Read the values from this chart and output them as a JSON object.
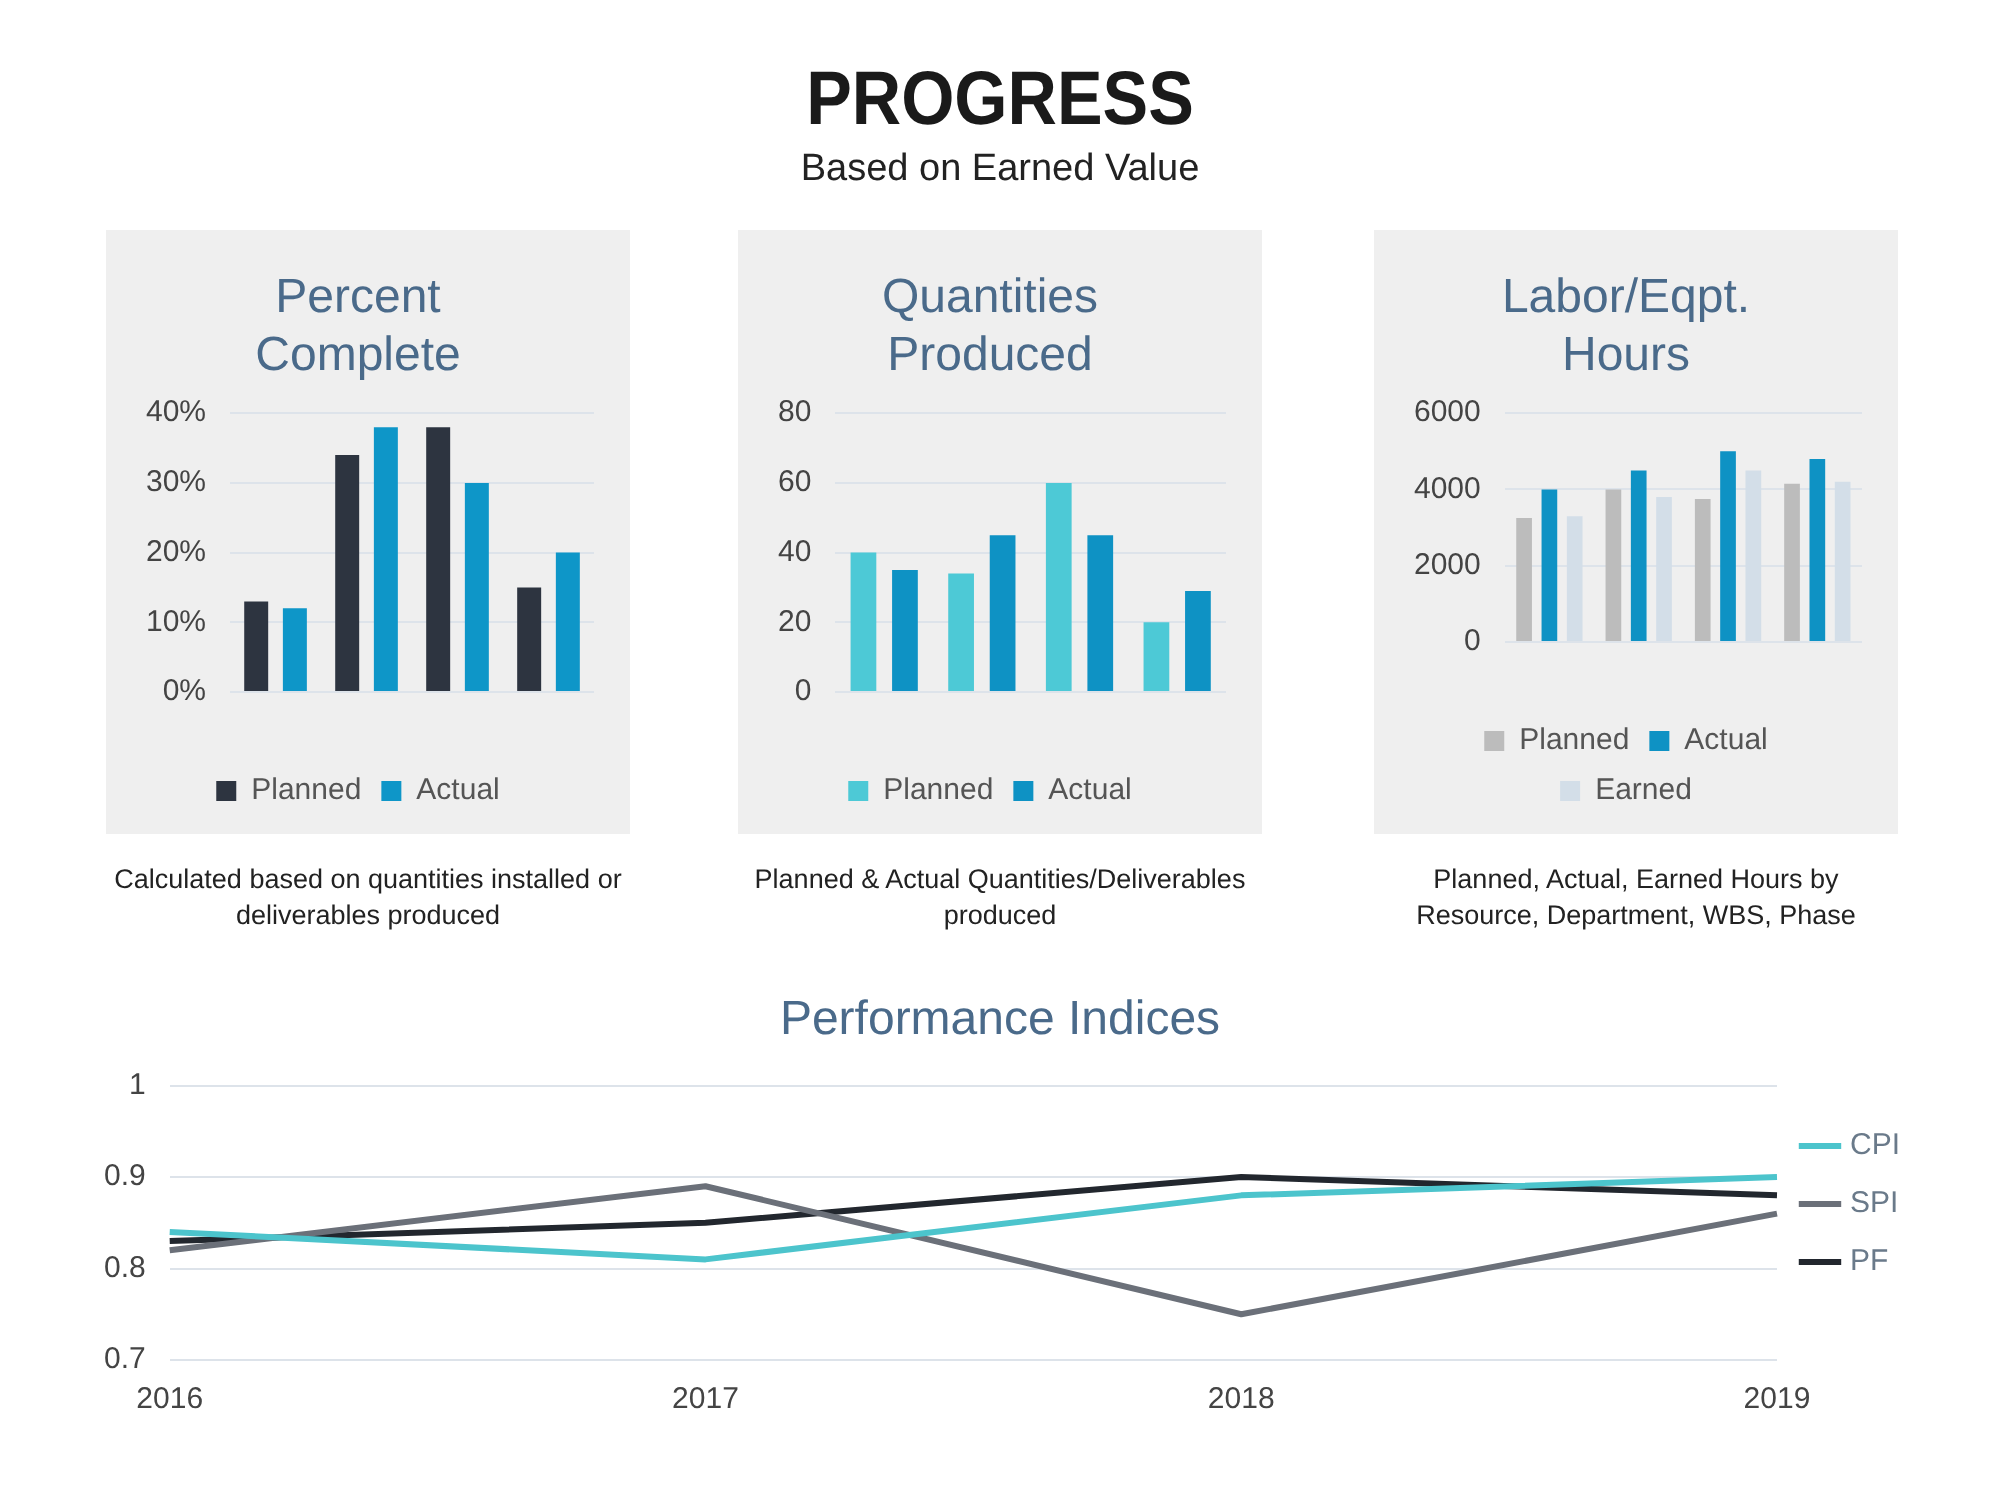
{
  "chart_data": [
    {
      "type": "other",
      "title": "PROGRESS",
      "subtitle": "Based on Earned Value"
    },
    {
      "type": "bar",
      "title": "Percent Complete",
      "categories": [
        null,
        null,
        null,
        null
      ],
      "series": [
        {
          "name": "Planned",
          "color": "#2d3440",
          "values": [
            13,
            34,
            38,
            15
          ]
        },
        {
          "name": "Actual",
          "color": "#0e96c8",
          "values": [
            12,
            38,
            30,
            20
          ]
        }
      ],
      "ylim": [
        0,
        40
      ],
      "yticks": [
        {
          "value": 0,
          "label": "0%"
        },
        {
          "value": 10,
          "label": "10%"
        },
        {
          "value": 20,
          "label": "20%"
        },
        {
          "value": 30,
          "label": "30%"
        },
        {
          "value": 40,
          "label": "40%"
        }
      ],
      "grid": "y",
      "legend": "bottom",
      "annotations": [
        "Calculated based on quantities installed or deliverables produced"
      ]
    },
    {
      "type": "bar",
      "title": "Quantities Produced",
      "categories": [
        null,
        null,
        null,
        null
      ],
      "series": [
        {
          "name": "Planned",
          "color": "#4dc9d6",
          "values": [
            40,
            34,
            60,
            20
          ]
        },
        {
          "name": "Actual",
          "color": "#0e92c4",
          "values": [
            35,
            45,
            45,
            29
          ]
        }
      ],
      "ylim": [
        0,
        80
      ],
      "yticks": [
        0,
        20,
        40,
        60,
        80
      ],
      "grid": "y",
      "legend": "bottom",
      "annotations": [
        "Planned & Actual Quantities/Deliverables produced"
      ]
    },
    {
      "type": "bar",
      "title": "Labor/Eqpt. Hours",
      "categories": [
        null,
        null,
        null,
        null
      ],
      "series": [
        {
          "name": "Planned",
          "color": "#bcbcbc",
          "values": [
            3250,
            4000,
            3750,
            4150
          ]
        },
        {
          "name": "Actual",
          "color": "#0e92c4",
          "values": [
            4000,
            4500,
            5000,
            4800
          ]
        },
        {
          "name": "Earned",
          "color": "#d3dee8",
          "values": [
            3300,
            3800,
            4500,
            4200
          ]
        }
      ],
      "ylim": [
        0,
        6000
      ],
      "yticks": [
        0,
        2000,
        4000,
        6000
      ],
      "grid": "y",
      "legend": "bottom",
      "annotations": [
        "Planned, Actual, Earned Hours by Resource, Department, WBS, Phase"
      ]
    },
    {
      "type": "line",
      "title": "Performance Indices",
      "categories": [
        "2016",
        "2017",
        "2018",
        "2019"
      ],
      "series": [
        {
          "name": "CPI",
          "color": "#4cc4cc",
          "values": [
            0.84,
            0.81,
            0.88,
            0.9
          ]
        },
        {
          "name": "SPI",
          "color": "#6b7079",
          "values": [
            0.82,
            0.89,
            0.75,
            0.86
          ]
        },
        {
          "name": "PF",
          "color": "#22272e",
          "values": [
            0.83,
            0.85,
            0.9,
            0.88
          ]
        }
      ],
      "ylim": [
        0.7,
        1
      ],
      "yticks": [
        0.7,
        0.8,
        0.9,
        1
      ],
      "grid": "y",
      "legend": "right"
    }
  ]
}
